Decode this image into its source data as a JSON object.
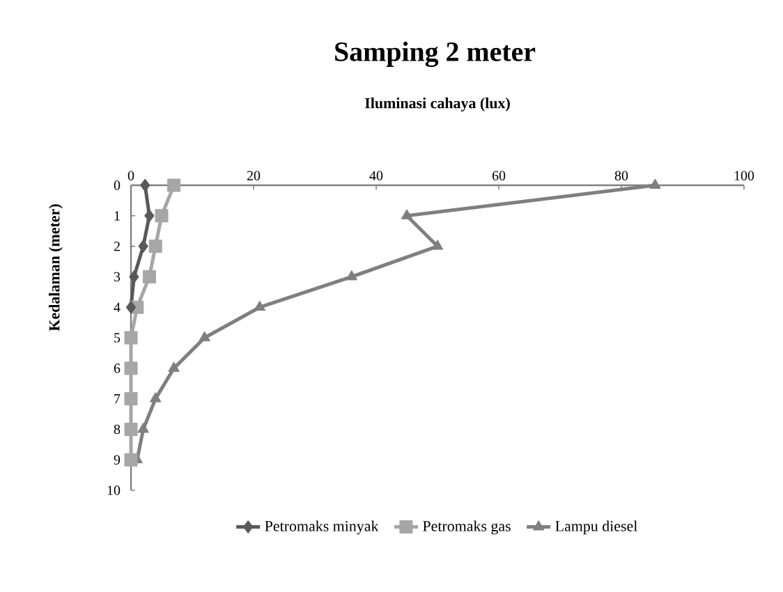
{
  "chart_data": {
    "type": "line",
    "title": "Samping 2 meter",
    "xlabel": "Iluminasi cahaya (lux)",
    "ylabel": "Kedalaman (meter)",
    "xlim": [
      0,
      100
    ],
    "xticks": [
      0,
      20,
      40,
      60,
      80,
      100
    ],
    "ylim": [
      10,
      0
    ],
    "yticks": [
      0,
      1,
      2,
      3,
      4,
      5,
      6,
      7,
      8,
      9,
      10
    ],
    "legend": "bottom",
    "grid": false,
    "series": [
      {
        "name": "Petromaks minyak",
        "color": "#595959",
        "marker": "diamond",
        "x": [
          2.3,
          3,
          2,
          0.5,
          0
        ],
        "values": [
          0,
          1,
          2,
          3,
          4
        ]
      },
      {
        "name": "Petromaks gas",
        "color": "#a6a6a6",
        "marker": "square",
        "x": [
          7,
          5,
          4,
          3,
          1,
          0,
          0,
          0,
          0,
          0
        ],
        "values": [
          0,
          1,
          2,
          3,
          4,
          5,
          6,
          7,
          8,
          9
        ]
      },
      {
        "name": "Lampu diesel",
        "color": "#7f7f7f",
        "marker": "triangle",
        "x": [
          85.5,
          45,
          50,
          36,
          21,
          12,
          7,
          4,
          2,
          1
        ],
        "values": [
          0,
          1,
          2,
          3,
          4,
          5,
          6,
          7,
          8,
          9
        ]
      }
    ]
  }
}
